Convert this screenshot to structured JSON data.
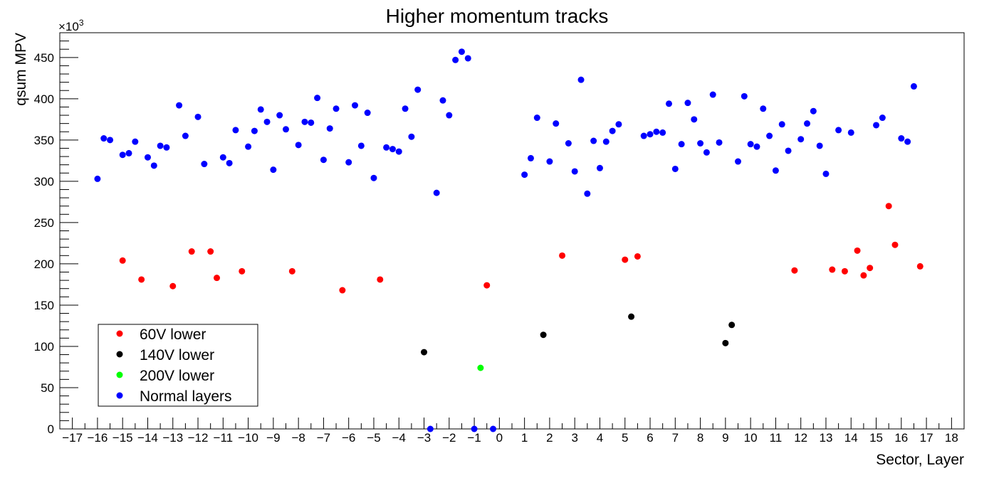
{
  "chart_data": {
    "type": "scatter",
    "title": "Higher momentum tracks",
    "xlabel": "Sector, Layer",
    "ylabel": "qsum MPV",
    "y_multiplier": "×10",
    "y_multiplier_exp": "3",
    "xlim": [
      -17.5,
      18.5
    ],
    "ylim": [
      0,
      480
    ],
    "x_ticks": [
      -17,
      -16,
      -15,
      -14,
      -13,
      -12,
      -11,
      -10,
      -9,
      -8,
      -7,
      -6,
      -5,
      -4,
      -3,
      -2,
      -1,
      0,
      1,
      2,
      3,
      4,
      5,
      6,
      7,
      8,
      9,
      10,
      11,
      12,
      13,
      14,
      15,
      16,
      17,
      18
    ],
    "y_ticks": [
      0,
      50,
      100,
      150,
      200,
      250,
      300,
      350,
      400,
      450
    ],
    "legend_position": "bottom-left",
    "series": [
      {
        "name": "60V lower",
        "color": "#ff0000",
        "points": [
          [
            -15.0,
            204
          ],
          [
            -14.25,
            181
          ],
          [
            -13.0,
            173
          ],
          [
            -12.25,
            215
          ],
          [
            -11.5,
            215
          ],
          [
            -11.25,
            183
          ],
          [
            -10.25,
            191
          ],
          [
            -8.25,
            191
          ],
          [
            -6.25,
            168
          ],
          [
            -4.75,
            181
          ],
          [
            -0.5,
            174
          ],
          [
            2.5,
            210
          ],
          [
            5.0,
            205
          ],
          [
            5.5,
            209
          ],
          [
            11.75,
            192
          ],
          [
            13.25,
            193
          ],
          [
            13.75,
            191
          ],
          [
            14.25,
            216
          ],
          [
            14.5,
            186
          ],
          [
            14.75,
            195
          ],
          [
            15.5,
            270
          ],
          [
            15.75,
            223
          ],
          [
            16.75,
            197
          ]
        ]
      },
      {
        "name": "140V lower",
        "color": "#000000",
        "points": [
          [
            -3.0,
            93
          ],
          [
            1.75,
            114
          ],
          [
            5.25,
            136
          ],
          [
            9.0,
            104
          ],
          [
            9.25,
            126
          ]
        ]
      },
      {
        "name": "200V lower",
        "color": "#00ff00",
        "points": [
          [
            -0.75,
            74
          ]
        ]
      },
      {
        "name": "Normal layers",
        "color": "#0000ff",
        "points": [
          [
            -16.0,
            303
          ],
          [
            -15.75,
            352
          ],
          [
            -15.5,
            350
          ],
          [
            -15.0,
            332
          ],
          [
            -14.75,
            334
          ],
          [
            -14.5,
            348
          ],
          [
            -14.0,
            329
          ],
          [
            -13.75,
            319
          ],
          [
            -13.5,
            343
          ],
          [
            -13.25,
            341
          ],
          [
            -12.75,
            392
          ],
          [
            -12.5,
            355
          ],
          [
            -12.0,
            378
          ],
          [
            -11.75,
            321
          ],
          [
            -11.0,
            329
          ],
          [
            -10.75,
            322
          ],
          [
            -10.5,
            362
          ],
          [
            -10.0,
            342
          ],
          [
            -9.75,
            361
          ],
          [
            -9.5,
            387
          ],
          [
            -9.25,
            372
          ],
          [
            -9.0,
            314
          ],
          [
            -8.75,
            380
          ],
          [
            -8.5,
            363
          ],
          [
            -8.0,
            344
          ],
          [
            -7.75,
            372
          ],
          [
            -7.5,
            371
          ],
          [
            -7.25,
            401
          ],
          [
            -7.0,
            326
          ],
          [
            -6.75,
            364
          ],
          [
            -6.5,
            388
          ],
          [
            -6.0,
            323
          ],
          [
            -5.75,
            392
          ],
          [
            -5.5,
            343
          ],
          [
            -5.25,
            383
          ],
          [
            -5.0,
            304
          ],
          [
            -4.5,
            341
          ],
          [
            -4.25,
            339
          ],
          [
            -4.0,
            336
          ],
          [
            -3.75,
            388
          ],
          [
            -3.5,
            354
          ],
          [
            -3.25,
            411
          ],
          [
            -2.75,
            0
          ],
          [
            -2.5,
            286
          ],
          [
            -2.25,
            398
          ],
          [
            -2.0,
            380
          ],
          [
            -1.75,
            447
          ],
          [
            -1.5,
            457
          ],
          [
            -1.25,
            449
          ],
          [
            -1.0,
            0
          ],
          [
            -0.25,
            0
          ],
          [
            1.0,
            308
          ],
          [
            1.25,
            328
          ],
          [
            1.5,
            377
          ],
          [
            2.0,
            324
          ],
          [
            2.25,
            370
          ],
          [
            2.75,
            346
          ],
          [
            3.0,
            312
          ],
          [
            3.25,
            423
          ],
          [
            3.5,
            285
          ],
          [
            3.75,
            349
          ],
          [
            4.0,
            316
          ],
          [
            4.25,
            348
          ],
          [
            4.5,
            361
          ],
          [
            4.75,
            369
          ],
          [
            5.75,
            355
          ],
          [
            6.0,
            357
          ],
          [
            6.25,
            360
          ],
          [
            6.5,
            359
          ],
          [
            6.75,
            394
          ],
          [
            7.0,
            315
          ],
          [
            7.25,
            345
          ],
          [
            7.5,
            395
          ],
          [
            7.75,
            375
          ],
          [
            8.0,
            346
          ],
          [
            8.25,
            335
          ],
          [
            8.5,
            405
          ],
          [
            8.75,
            347
          ],
          [
            9.5,
            324
          ],
          [
            9.75,
            403
          ],
          [
            10.0,
            345
          ],
          [
            10.25,
            342
          ],
          [
            10.5,
            388
          ],
          [
            10.75,
            355
          ],
          [
            11.0,
            313
          ],
          [
            11.25,
            369
          ],
          [
            11.5,
            337
          ],
          [
            12.0,
            351
          ],
          [
            12.25,
            370
          ],
          [
            12.5,
            385
          ],
          [
            12.75,
            343
          ],
          [
            13.0,
            309
          ],
          [
            13.5,
            362
          ],
          [
            14.0,
            359
          ],
          [
            15.0,
            368
          ],
          [
            15.25,
            377
          ],
          [
            16.0,
            352
          ],
          [
            16.25,
            348
          ],
          [
            16.5,
            415
          ]
        ]
      }
    ]
  }
}
